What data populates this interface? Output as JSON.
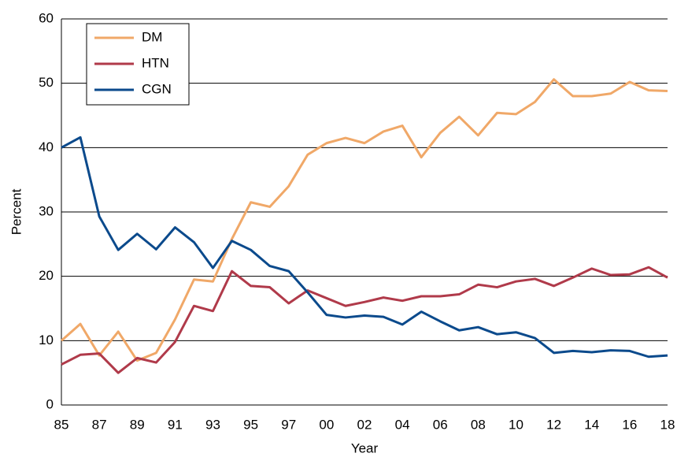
{
  "chart_data": {
    "type": "line",
    "x_label": "Year",
    "y_label": "Percent",
    "categories": [
      "85",
      null,
      "87",
      null,
      "89",
      null,
      "91",
      null,
      "93",
      null,
      "95",
      null,
      "97",
      null,
      "00",
      null,
      "02",
      null,
      "04",
      null,
      "06",
      null,
      "08",
      null,
      "10",
      null,
      "12",
      null,
      "14",
      null,
      "16",
      null,
      "18"
    ],
    "series": [
      {
        "name": "DM",
        "color": "#f0a868",
        "values": [
          10,
          12.6,
          7.7,
          11.4,
          6.9,
          8.1,
          13.3,
          19.5,
          19.2,
          25.8,
          31.5,
          30.8,
          34.0,
          38.9,
          40.7,
          41.5,
          40.7,
          42.5,
          43.4,
          38.5,
          42.3,
          44.8,
          41.9,
          45.4,
          45.2,
          47.1,
          50.6,
          48.0,
          48.0,
          48.4,
          50.2,
          48.9,
          48.8
        ]
      },
      {
        "name": "HTN",
        "color": "#b03a4a",
        "values": [
          6.3,
          7.8,
          8.0,
          5.0,
          7.3,
          6.6,
          9.8,
          15.4,
          14.6,
          20.8,
          18.5,
          18.3,
          15.8,
          17.8,
          16.6,
          15.4,
          16.0,
          16.7,
          16.2,
          16.9,
          16.9,
          17.2,
          18.7,
          18.3,
          19.2,
          19.6,
          18.5,
          19.8,
          21.2,
          20.2,
          20.3,
          21.4,
          19.8
        ]
      },
      {
        "name": "CGN",
        "color": "#0b4a8c",
        "values": [
          40.0,
          41.6,
          29.3,
          24.1,
          26.6,
          24.2,
          27.6,
          25.3,
          21.3,
          25.5,
          24.1,
          21.6,
          20.8,
          17.5,
          14.0,
          13.6,
          13.9,
          13.7,
          12.5,
          14.5,
          13.0,
          11.6,
          12.1,
          11.0,
          11.3,
          10.4,
          8.1,
          8.4,
          8.2,
          8.5,
          8.4,
          7.5,
          7.7
        ]
      }
    ],
    "ylim": [
      0,
      60
    ],
    "yticks": [
      0,
      10,
      20,
      30,
      40,
      50,
      60
    ],
    "grid": true,
    "legend": "top-left"
  }
}
